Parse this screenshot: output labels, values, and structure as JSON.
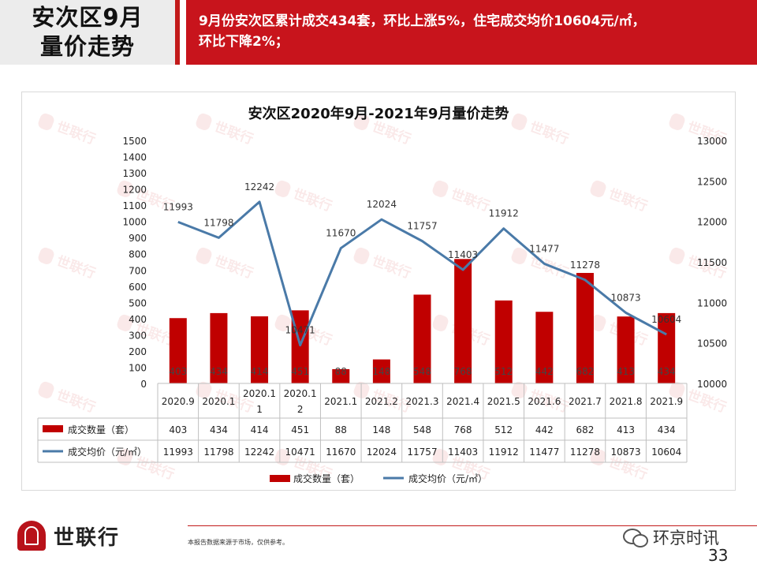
{
  "header": {
    "title_line1": "安次区9月",
    "title_line2": "量价走势",
    "summary_line1": "9月份安次区累计成交434套，环比上涨5%，住宅成交均价10604元/㎡，",
    "summary_line2": "环比下降2%；"
  },
  "chart_data": {
    "type": "bar+line",
    "title": "安次区2020年9月-2021年9月量价走势",
    "categories": [
      "2020.9",
      "2020.10",
      "2020.11",
      "2020.12",
      "2021.1",
      "2021.2",
      "2021.3",
      "2021.4",
      "2021.5",
      "2021.6",
      "2021.7",
      "2021.8",
      "2021.9"
    ],
    "category_lines": [
      [
        "2020.9"
      ],
      [
        "2020.1"
      ],
      [
        "2020.1",
        "1"
      ],
      [
        "2020.1",
        "2"
      ],
      [
        "2021.1"
      ],
      [
        "2021.2"
      ],
      [
        "2021.3"
      ],
      [
        "2021.4"
      ],
      [
        "2021.5"
      ],
      [
        "2021.6"
      ],
      [
        "2021.7"
      ],
      [
        "2021.8"
      ],
      [
        "2021.9"
      ]
    ],
    "series": [
      {
        "name": "成交数量（套）",
        "type": "bar",
        "axis": "left",
        "color": "#c00000",
        "values": [
          403,
          434,
          414,
          451,
          88,
          148,
          548,
          768,
          512,
          442,
          682,
          413,
          434
        ]
      },
      {
        "name": "成交均价（元/㎡）",
        "type": "line",
        "axis": "right",
        "color": "#4a7aa8",
        "values": [
          11993,
          11798,
          12242,
          10471,
          11670,
          12024,
          11757,
          11403,
          11912,
          11477,
          11278,
          10873,
          10604
        ]
      }
    ],
    "y_left": {
      "min": 0,
      "max": 1500,
      "step": 100
    },
    "y_right": {
      "min": 10000,
      "max": 13000,
      "step": 500
    },
    "data_table": true,
    "legend_position": "bottom"
  },
  "brand": {
    "name": "世联行",
    "watermark": "世联行"
  },
  "footer": {
    "note": "本报告数据来源于市场，仅供参考。",
    "wechat": "环京时讯",
    "page": "33"
  }
}
